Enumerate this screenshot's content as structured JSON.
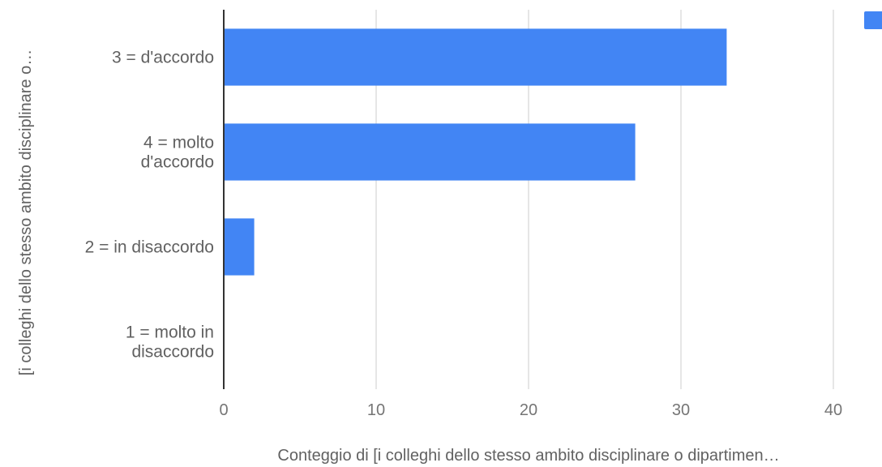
{
  "chart_data": {
    "type": "bar",
    "orientation": "horizontal",
    "categories": [
      [
        "3 = d'accordo"
      ],
      [
        "4 = molto",
        "d'accordo"
      ],
      [
        "2 = in disaccordo"
      ],
      [
        "1 = molto in",
        "disaccordo"
      ]
    ],
    "values": [
      33,
      27,
      2,
      0
    ],
    "xlabel": "Conteggio di  [i colleghi dello stesso ambito disciplinare o dipartimen…",
    "ylabel": "[i colleghi dello stesso ambito disciplinare o…",
    "xlim": [
      0,
      40
    ],
    "xticks": [
      0,
      10,
      20,
      30,
      40
    ],
    "grid": true,
    "legend": "top-right",
    "bar_color": "#4285f4"
  }
}
